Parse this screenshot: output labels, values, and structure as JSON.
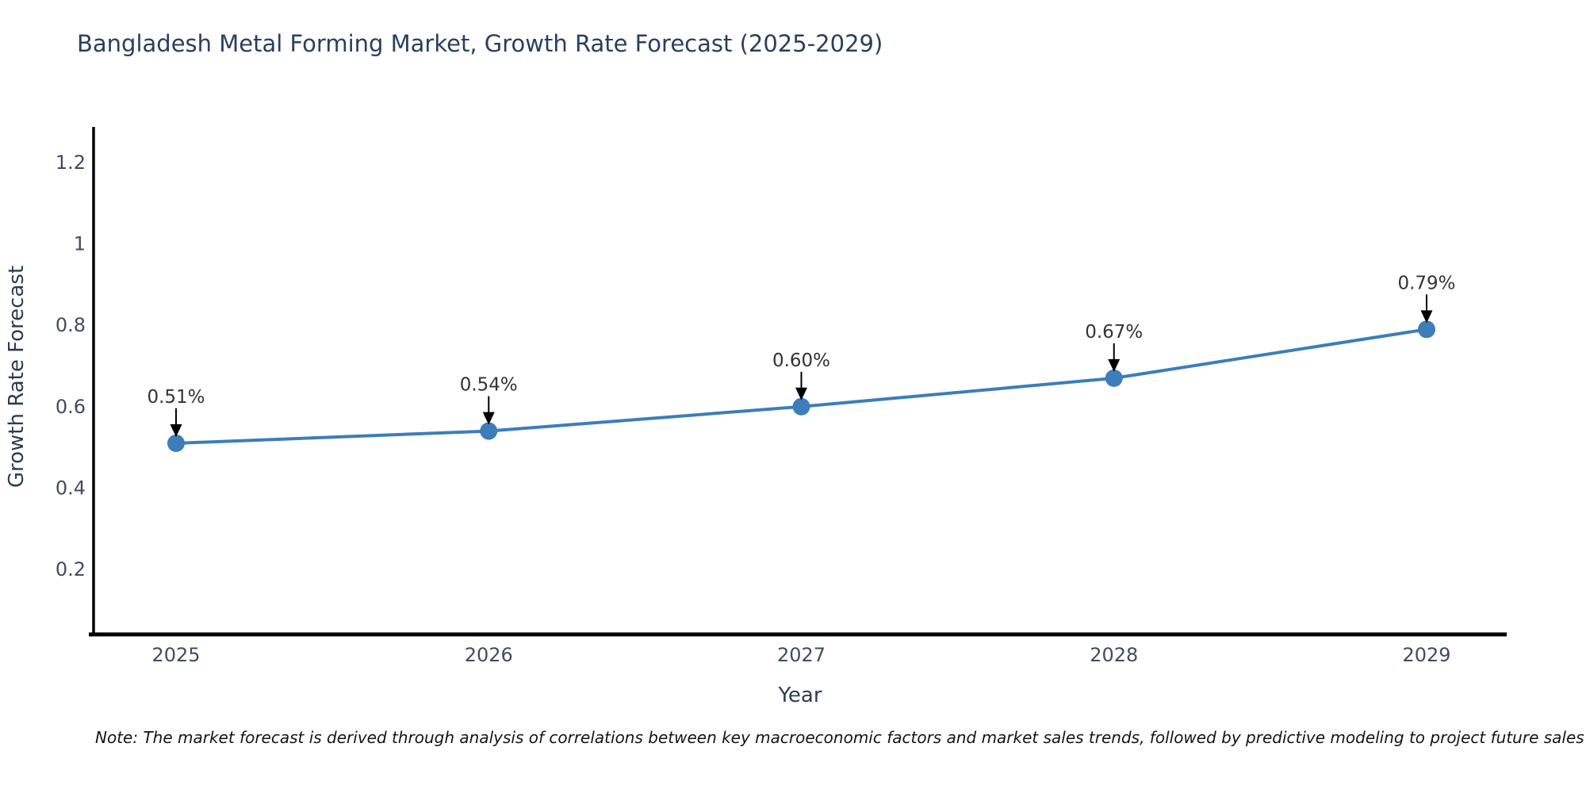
{
  "chart_data": {
    "type": "line",
    "title": "Bangladesh Metal Forming Market, Growth Rate Forecast (2025-2029)",
    "xlabel": "Year",
    "ylabel": "Growth Rate Forecast",
    "x": [
      2025,
      2026,
      2027,
      2028,
      2029
    ],
    "y": [
      0.51,
      0.54,
      0.6,
      0.67,
      0.79
    ],
    "point_labels": [
      "0.51%",
      "0.54%",
      "0.60%",
      "0.67%",
      "0.79%"
    ],
    "yticks": [
      0.2,
      0.4,
      0.6,
      0.8,
      1.0,
      1.2
    ],
    "ytick_labels": [
      "0.2",
      "0.4",
      "0.6",
      "0.8",
      "1",
      "1.2"
    ],
    "ylim": [
      0.05,
      1.3
    ],
    "grid": false,
    "legend": "none",
    "line_color": "#3d7dba",
    "marker_color": "#3d7dba",
    "annotation_color": "#333333",
    "annotation_arrow_color": "#000000",
    "axis_line_color": "#000000",
    "tick_label_color": "#414c60",
    "axis_title_color": "#2f3b52",
    "title_color": "#2a3f5f",
    "note": "Note: The market forecast is derived through analysis of correlations between key macroeconomic factors and market sales trends, followed by predictive modeling to project future sales"
  }
}
